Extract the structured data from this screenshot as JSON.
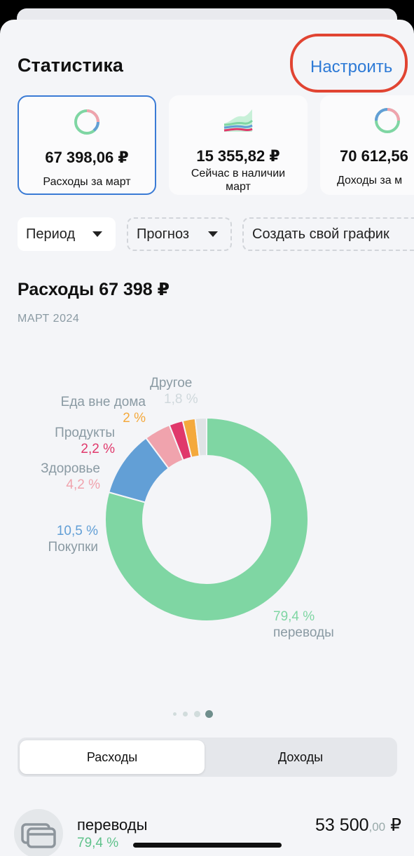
{
  "header": {
    "title": "Статистика",
    "configure_label": "Настроить",
    "highlight_color": "#e14432",
    "accent_color": "#2d7ad6"
  },
  "cards": [
    {
      "amount": "67 398,06 ₽",
      "label": "Расходы за март",
      "active": true
    },
    {
      "amount": "15 355,82 ₽",
      "label": "Сейчас в наличии март",
      "active": false
    },
    {
      "amount": "70 612,56",
      "label": "Доходы за м",
      "active": false
    }
  ],
  "filters": [
    {
      "label": "Период",
      "dropdown": true
    },
    {
      "label": "Прогноз",
      "dropdown": true
    },
    {
      "label": "Создать свой график",
      "dropdown": false
    }
  ],
  "section": {
    "title": "Расходы 67 398 ₽",
    "subtitle": "МАРТ 2024"
  },
  "chart_data": {
    "type": "pie",
    "title": "",
    "donut": true,
    "slices": [
      {
        "name": "переводы",
        "value": 79.4,
        "label": "79,4 %",
        "color": "#7fd6a3"
      },
      {
        "name": "Покупки",
        "value": 10.5,
        "label": "10,5 %",
        "color": "#629fd6"
      },
      {
        "name": "Здоровье",
        "value": 4.2,
        "label": "4,2 %",
        "color": "#f0a3ad"
      },
      {
        "name": "Продукты",
        "value": 2.2,
        "label": "2,2 %",
        "color": "#e0386b"
      },
      {
        "name": "Еда вне дома",
        "value": 2.0,
        "label": "2 %",
        "color": "#f4a93c"
      },
      {
        "name": "Другое",
        "value": 1.8,
        "label": "1,8 %",
        "color": "#dfe3e6"
      }
    ]
  },
  "pagination": {
    "pages": 4,
    "current": 4
  },
  "segment": {
    "left": "Расходы",
    "right": "Доходы",
    "selected": "Расходы"
  },
  "list": [
    {
      "name": "переводы",
      "percent": "79,4 %",
      "amount_main": "53 500",
      "amount_cents": ",00",
      "currency": "₽",
      "icon": "wallet-icon"
    }
  ]
}
